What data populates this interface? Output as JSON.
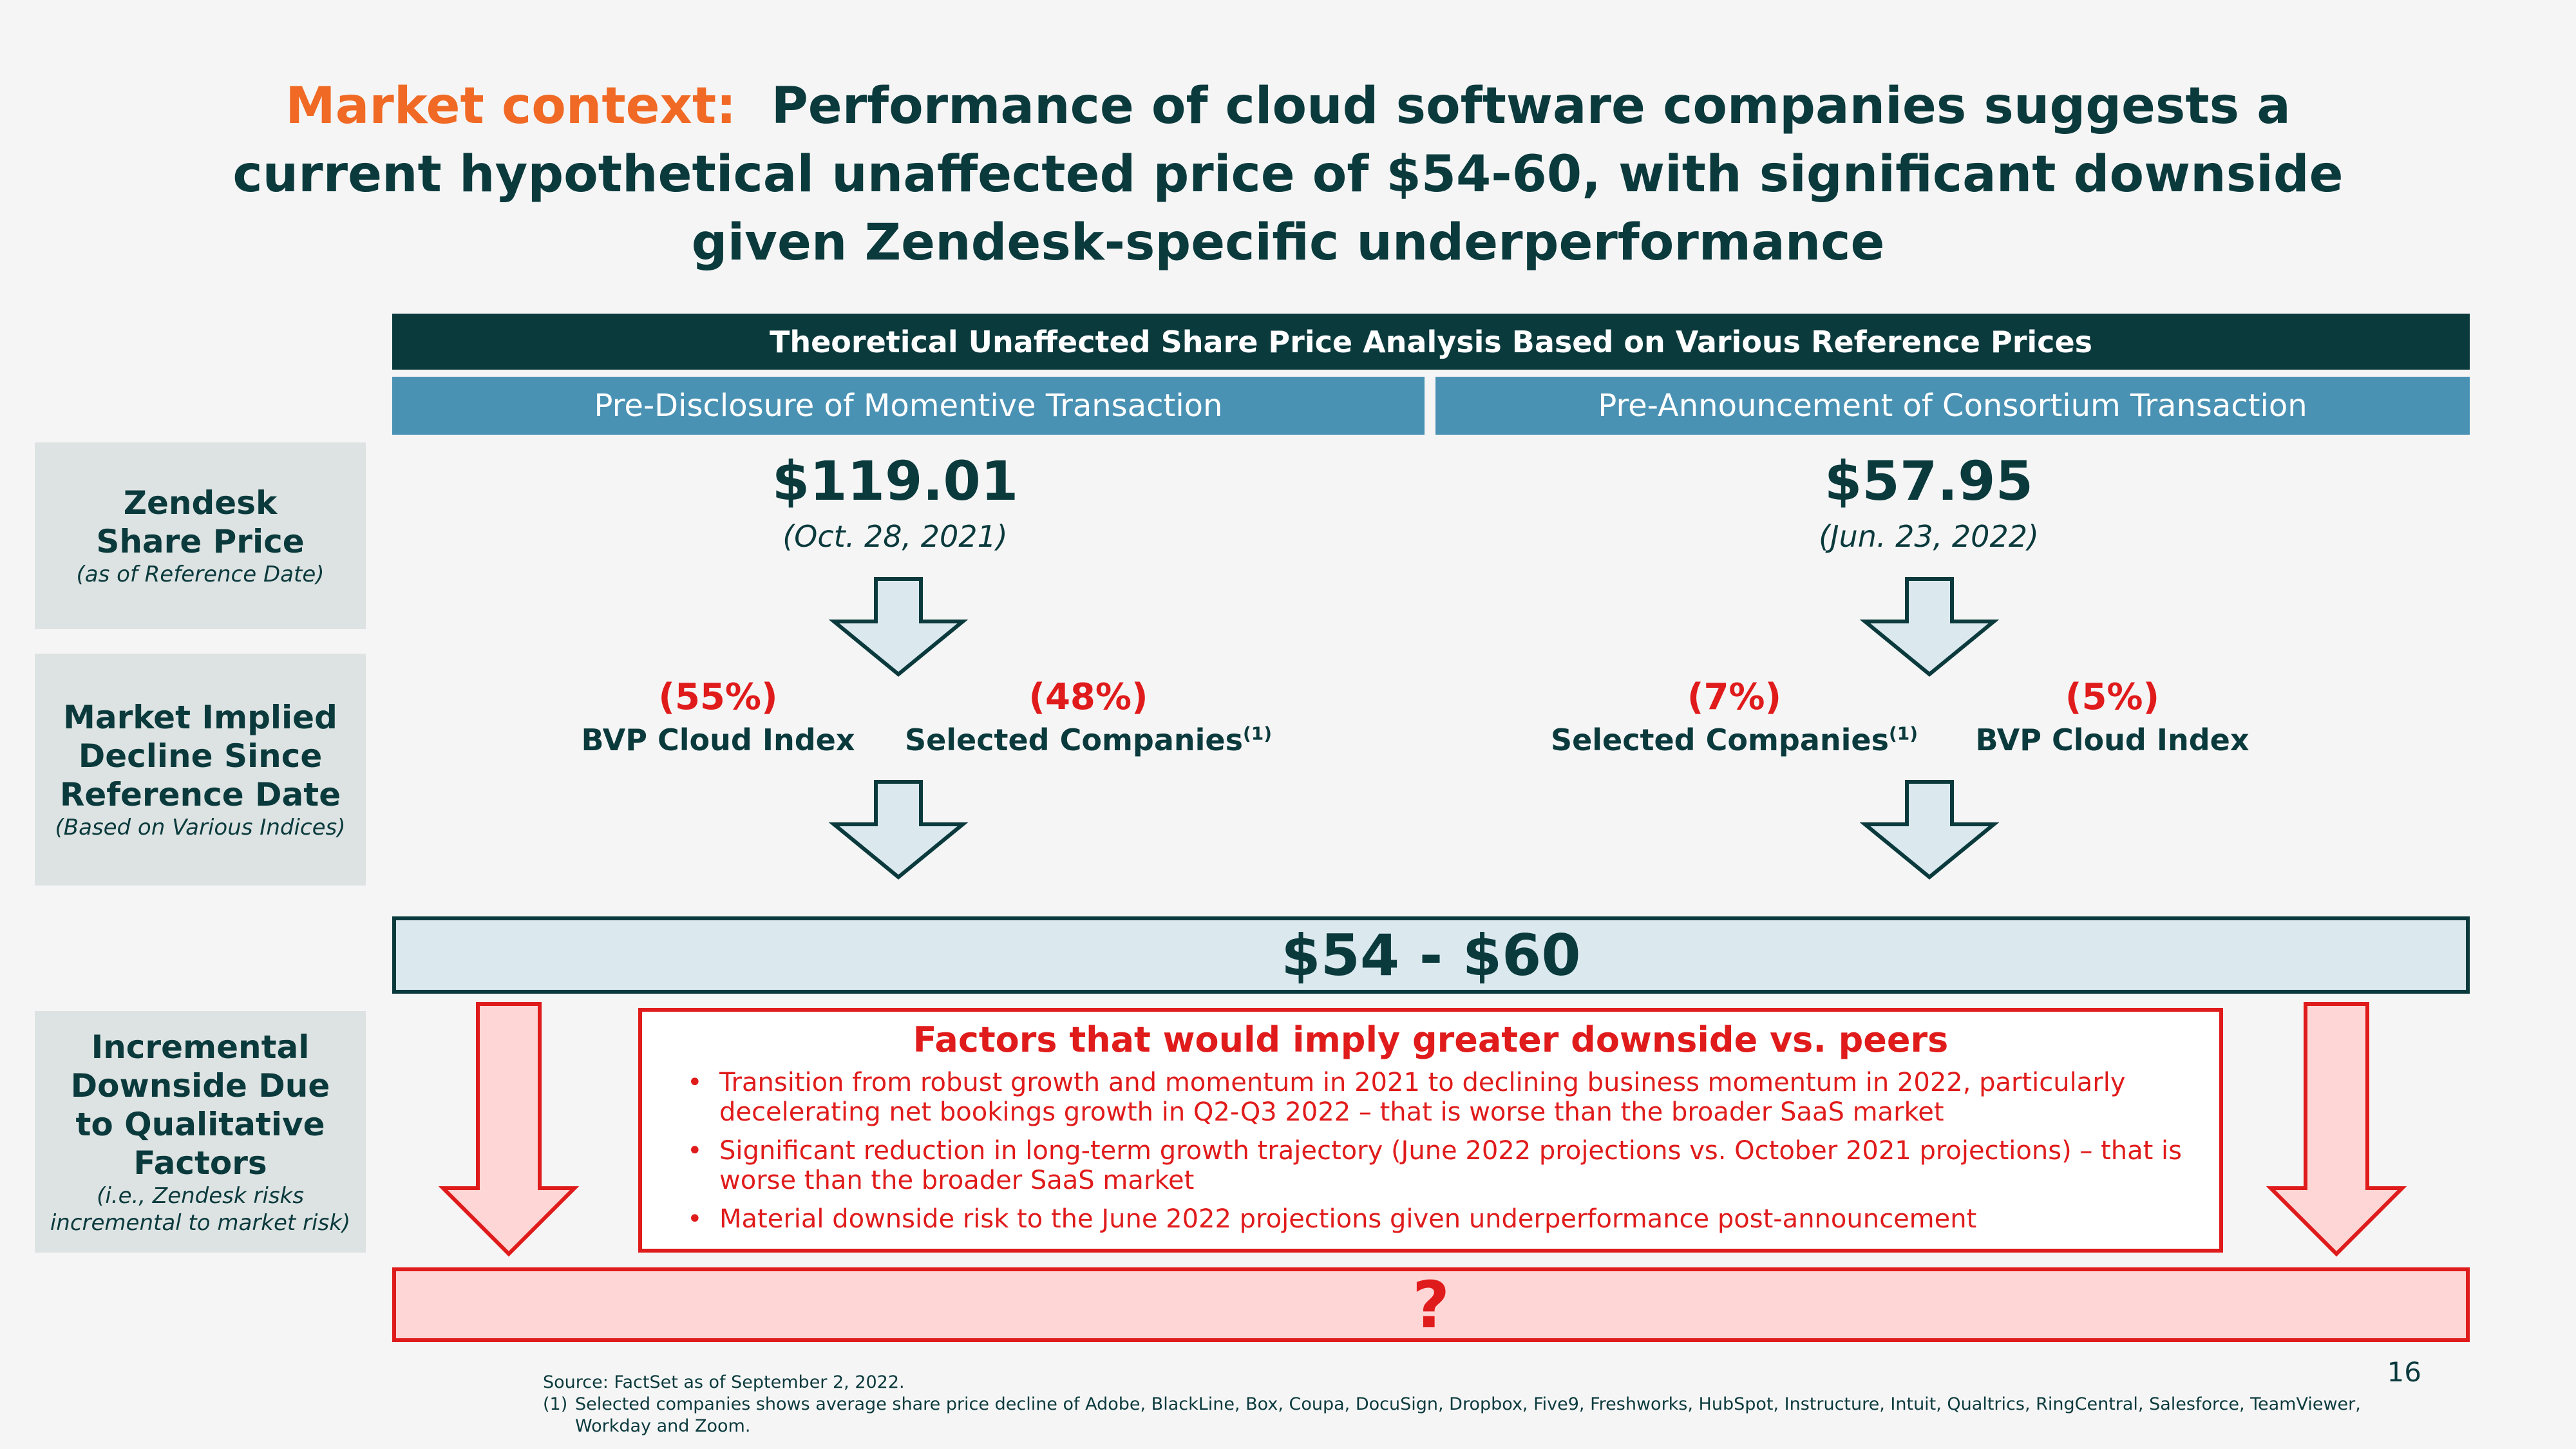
{
  "title": {
    "accent": "Market context:",
    "line1_rest": "Performance of cloud software companies suggests a",
    "line2": "current hypothetical unaffected price of $54-60, with significant downside",
    "line3": "given Zendesk-specific underperformance"
  },
  "header": {
    "main": "Theoretical Unaffected Share Price Analysis Based on Various Reference Prices",
    "left": "Pre-Disclosure of Momentive Transaction",
    "right": "Pre-Announcement of Consortium Transaction"
  },
  "row_labels": {
    "share_price": {
      "main": "Zendesk Share Price",
      "sub": "(as of Reference Date)"
    },
    "decline": {
      "main": "Market Implied Decline Since Reference Date",
      "sub": "(Based on Various Indices)"
    },
    "downside": {
      "main": "Incremental Downside Due to Qualitative Factors",
      "sub": "(i.e., Zendesk risks incremental to market risk)"
    }
  },
  "left": {
    "price": "$119.01",
    "date": "(Oct. 28, 2021)",
    "decline_a": {
      "pct": "(55%)",
      "label": "BVP Cloud Index",
      "note": ""
    },
    "decline_b": {
      "pct": "(48%)",
      "label": "Selected Companies",
      "note": "(1)"
    }
  },
  "right": {
    "price": "$57.95",
    "date": "(Jun. 23, 2022)",
    "decline_a": {
      "pct": "(7%)",
      "label": "Selected Companies",
      "note": "(1)"
    },
    "decline_b": {
      "pct": "(5%)",
      "label": "BVP Cloud Index",
      "note": ""
    }
  },
  "range": "$54 - $60",
  "factors": {
    "title": "Factors that would imply greater downside vs. peers",
    "bullets": [
      "Transition from robust growth and momentum in 2021 to declining business momentum in 2022, particularly decelerating net bookings growth in Q2-Q3 2022 – that is worse than the broader SaaS market",
      "Significant reduction in long-term growth trajectory (June 2022 projections vs. October 2021 projections) – that is worse than the broader SaaS market",
      "Material downside risk to the June 2022 projections given underperformance post-announcement"
    ]
  },
  "unknown": "?",
  "source": {
    "line1": "Source:  FactSet as of September 2, 2022.",
    "marker": "(1)",
    "note": "Selected companies shows average share price decline of Adobe, BlackLine, Box, Coupa, DocuSign, Dropbox, Five9, Freshworks, HubSpot, Instructure, Intuit, Qualtrics, RingCentral, Salesforce, TeamViewer, Workday and Zoom."
  },
  "page_number": "16",
  "colors": {
    "navy": "#0b3a3d",
    "orange": "#f06a25",
    "red": "#e01b1b",
    "blue": "#4a92b4",
    "light_blue": "#dbe9ef",
    "pink": "#ffd6d6"
  }
}
